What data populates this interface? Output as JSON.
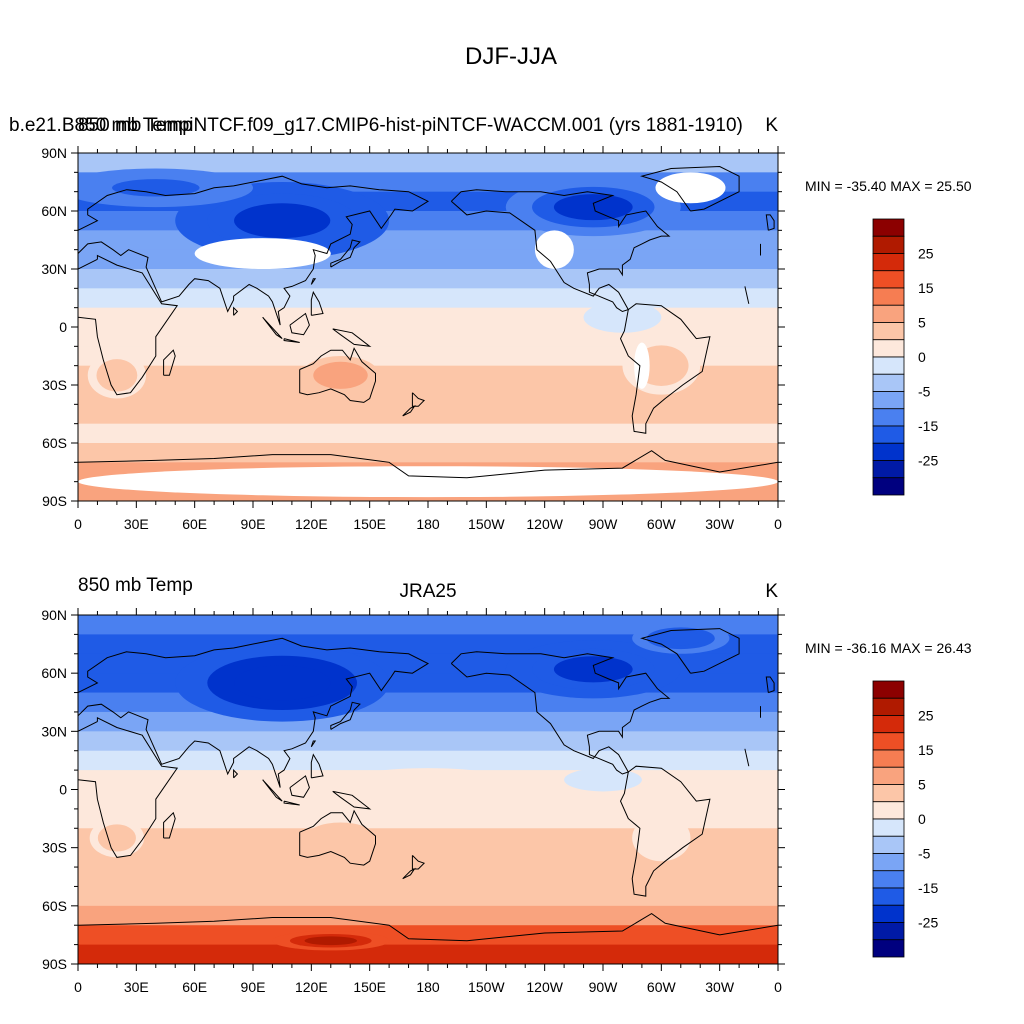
{
  "page": {
    "title": "DJF-JJA"
  },
  "colors": {
    "levels": [
      "#00007f",
      "#001aa6",
      "#0033cc",
      "#1f5be6",
      "#4a80f0",
      "#7aa5f5",
      "#a9c6f7",
      "#d6e6fb",
      "#fde8dc",
      "#fcc6a8",
      "#f9a37e",
      "#f67d52",
      "#ee4f25",
      "#d42a0a",
      "#b01a00",
      "#8c0000"
    ],
    "land_outline": "#000000",
    "missing": "#ffffff"
  },
  "chart_data": [
    {
      "type": "heatmap",
      "left_title": "b.e21.B850 mb TempiNTCF.f09_g17.CMIP6-hist-piNTCF-WACCM.001 (yrs 1881-1910)",
      "left_title_overlap": "850 mb Temp",
      "center_title": "",
      "right_title": "K",
      "minmax": "MIN = -35.40 MAX =  25.50",
      "min": -35.4,
      "max": 25.5,
      "x_ticks": [
        "0",
        "30E",
        "60E",
        "90E",
        "120E",
        "150E",
        "180",
        "150W",
        "120W",
        "90W",
        "60W",
        "30W",
        "0"
      ],
      "y_ticks": [
        "90N",
        "60N",
        "30N",
        "0",
        "30S",
        "60S",
        "90S"
      ],
      "xlim": [
        0,
        360
      ],
      "ylim": [
        -90,
        90
      ],
      "colorbar_labels": [
        "25",
        "15",
        "5",
        "0",
        "-5",
        "-15",
        "-25"
      ],
      "field_rows": [
        {
          "lat": 85,
          "value": -8
        },
        {
          "lat": 75,
          "value": -14
        },
        {
          "lat": 65,
          "value": -18
        },
        {
          "lat": 55,
          "value": -16
        },
        {
          "lat": 45,
          "value": -13
        },
        {
          "lat": 35,
          "value": -9
        },
        {
          "lat": 25,
          "value": -5
        },
        {
          "lat": 15,
          "value": -2
        },
        {
          "lat": 5,
          "value": 0
        },
        {
          "lat": -5,
          "value": 2
        },
        {
          "lat": -15,
          "value": 4
        },
        {
          "lat": -25,
          "value": 6
        },
        {
          "lat": -35,
          "value": 6
        },
        {
          "lat": -45,
          "value": 6
        },
        {
          "lat": -55,
          "value": 4
        },
        {
          "lat": -65,
          "value": 6
        },
        {
          "lat": -75,
          "value": 12
        },
        {
          "lat": -85,
          "value": 12
        }
      ],
      "blobs": [
        {
          "lon": 122,
          "lat": 60,
          "rx": 30,
          "ry": 12,
          "value": -32
        },
        {
          "lon": 105,
          "lat": 55,
          "rx": 55,
          "ry": 20,
          "value": -24
        },
        {
          "lon": 265,
          "lat": 62,
          "rx": 45,
          "ry": 15,
          "value": -22
        },
        {
          "lon": 40,
          "lat": 72,
          "rx": 50,
          "ry": 10,
          "value": -18
        },
        {
          "lon": 135,
          "lat": -25,
          "rx": 20,
          "ry": 10,
          "value": 10
        },
        {
          "lon": 20,
          "lat": -25,
          "rx": 15,
          "ry": 12,
          "value": 5
        },
        {
          "lon": 300,
          "lat": -20,
          "rx": 20,
          "ry": 15,
          "value": 5
        },
        {
          "lon": 150,
          "lat": -78,
          "rx": 25,
          "ry": 6,
          "value": 17
        },
        {
          "lon": 300,
          "lat": -80,
          "rx": 20,
          "ry": 5,
          "value": 17
        },
        {
          "lon": 180,
          "lat": 2,
          "rx": 40,
          "ry": 6,
          "value": 1
        },
        {
          "lon": 280,
          "lat": 5,
          "rx": 20,
          "ry": 8,
          "value": -3
        }
      ],
      "missing_regions": [
        {
          "lon": 95,
          "lat": 38,
          "rx": 35,
          "ry": 8
        },
        {
          "lon": 315,
          "lat": 72,
          "rx": 18,
          "ry": 8
        },
        {
          "lon": 245,
          "lat": 40,
          "rx": 10,
          "ry": 10
        },
        {
          "lon": 290,
          "lat": -20,
          "rx": 4,
          "ry": 12
        },
        {
          "lon": 180,
          "lat": -80,
          "rx": 180,
          "ry": 8
        }
      ]
    },
    {
      "type": "heatmap",
      "left_title": "850 mb Temp",
      "center_title": "JRA25",
      "right_title": "K",
      "minmax": "MIN = -36.16 MAX =  26.43",
      "min": -36.16,
      "max": 26.43,
      "x_ticks": [
        "0",
        "30E",
        "60E",
        "90E",
        "120E",
        "150E",
        "180",
        "150W",
        "120W",
        "90W",
        "60W",
        "30W",
        "0"
      ],
      "y_ticks": [
        "90N",
        "60N",
        "30N",
        "0",
        "30S",
        "60S",
        "90S"
      ],
      "xlim": [
        0,
        360
      ],
      "ylim": [
        -90,
        90
      ],
      "colorbar_labels": [
        "25",
        "15",
        "5",
        "0",
        "-5",
        "-15",
        "-25"
      ],
      "field_rows": [
        {
          "lat": 85,
          "value": -14
        },
        {
          "lat": 75,
          "value": -18
        },
        {
          "lat": 65,
          "value": -20
        },
        {
          "lat": 55,
          "value": -18
        },
        {
          "lat": 45,
          "value": -15
        },
        {
          "lat": 35,
          "value": -10
        },
        {
          "lat": 25,
          "value": -6
        },
        {
          "lat": 15,
          "value": -3
        },
        {
          "lat": 5,
          "value": 0
        },
        {
          "lat": -5,
          "value": 2
        },
        {
          "lat": -15,
          "value": 4
        },
        {
          "lat": -25,
          "value": 6
        },
        {
          "lat": -35,
          "value": 6
        },
        {
          "lat": -45,
          "value": 6
        },
        {
          "lat": -55,
          "value": 5
        },
        {
          "lat": -65,
          "value": 10
        },
        {
          "lat": -75,
          "value": 20
        },
        {
          "lat": -85,
          "value": 23
        }
      ],
      "blobs": [
        {
          "lon": 120,
          "lat": 57,
          "rx": 25,
          "ry": 10,
          "value": -33
        },
        {
          "lon": 105,
          "lat": 55,
          "rx": 55,
          "ry": 20,
          "value": -25
        },
        {
          "lon": 265,
          "lat": 62,
          "rx": 45,
          "ry": 15,
          "value": -24
        },
        {
          "lon": 310,
          "lat": 78,
          "rx": 25,
          "ry": 8,
          "value": -20
        },
        {
          "lon": 130,
          "lat": -78,
          "rx": 30,
          "ry": 5,
          "value": 27
        },
        {
          "lon": 135,
          "lat": -25,
          "rx": 18,
          "ry": 8,
          "value": 8
        },
        {
          "lon": 20,
          "lat": -25,
          "rx": 14,
          "ry": 10,
          "value": 5
        },
        {
          "lon": 300,
          "lat": -25,
          "rx": 15,
          "ry": 12,
          "value": 4
        },
        {
          "lon": 180,
          "lat": 5,
          "rx": 40,
          "ry": 6,
          "value": 1
        },
        {
          "lon": 270,
          "lat": 5,
          "rx": 20,
          "ry": 6,
          "value": -3
        }
      ],
      "missing_regions": []
    }
  ]
}
